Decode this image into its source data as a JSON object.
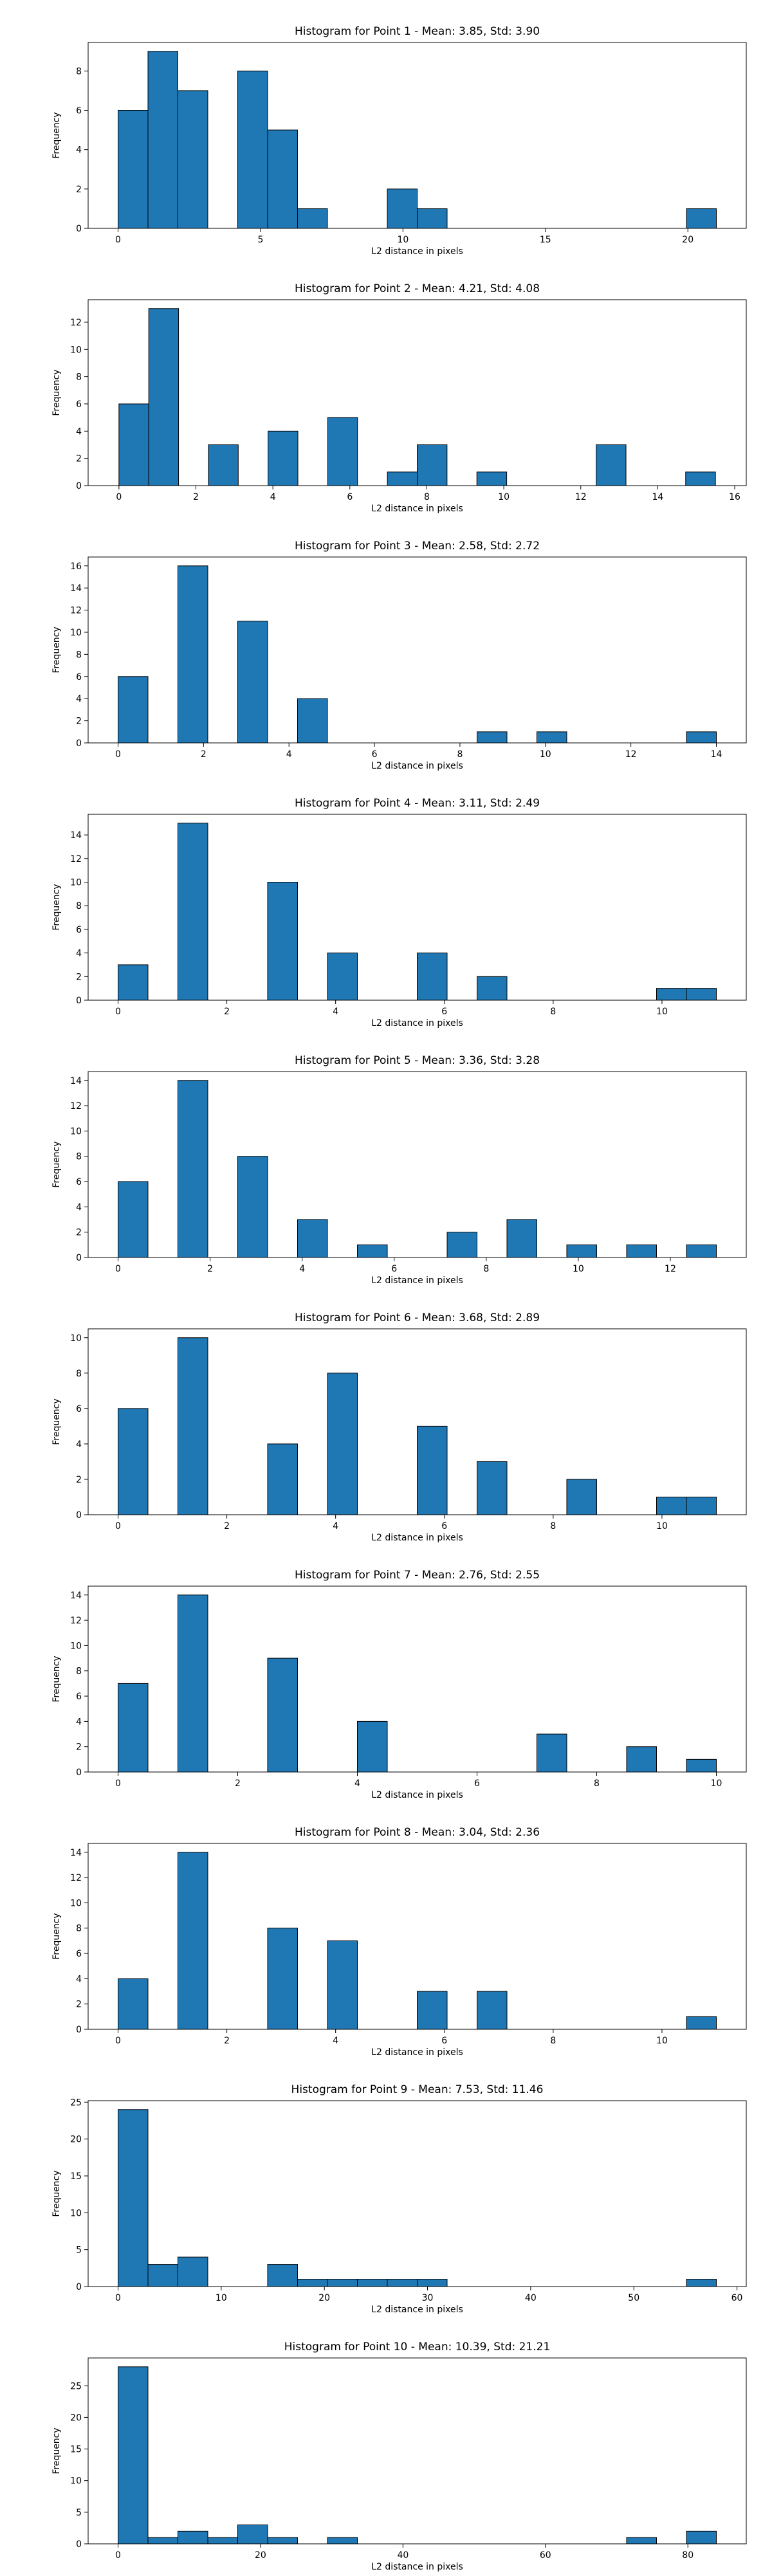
{
  "colors": {
    "bar_fill": "#1f77b4",
    "bar_edge": "#000000",
    "axis": "#000000"
  },
  "chart_data": [
    {
      "type": "bar",
      "title": "Histogram for Point 1 - Mean: 3.85, Std: 3.90",
      "xlabel": "L2 distance in pixels",
      "ylabel": "Frequency",
      "xlim": [
        -1.05,
        22.05
      ],
      "ylim": [
        0,
        9.45
      ],
      "xticks": [
        0,
        5,
        10,
        15,
        20
      ],
      "yticks": [
        0,
        2,
        4,
        6,
        8
      ],
      "bin_edges": [
        0,
        1.05,
        2.1,
        3.15,
        4.2,
        5.25,
        6.3,
        7.35,
        8.4,
        9.45,
        10.5,
        11.55,
        12.6,
        13.65,
        14.7,
        15.75,
        16.8,
        17.85,
        18.9,
        19.95,
        21.0
      ],
      "values": [
        6,
        9,
        7,
        0,
        8,
        5,
        1,
        0,
        0,
        2,
        1,
        0,
        0,
        0,
        0,
        0,
        0,
        0,
        0,
        1
      ]
    },
    {
      "type": "bar",
      "title": "Histogram for Point 2 - Mean: 4.21, Std: 4.08",
      "xlabel": "L2 distance in pixels",
      "ylabel": "Frequency",
      "xlim": [
        -0.8,
        16.3
      ],
      "ylim": [
        0,
        13.65
      ],
      "xticks": [
        0,
        2,
        4,
        6,
        8,
        10,
        12,
        14,
        16
      ],
      "yticks": [
        0,
        2,
        4,
        6,
        8,
        10,
        12
      ],
      "bin_edges": [
        0,
        0.775,
        1.55,
        2.325,
        3.1,
        3.875,
        4.65,
        5.425,
        6.2,
        6.975,
        7.75,
        8.525,
        9.3,
        10.075,
        10.85,
        11.625,
        12.4,
        13.175,
        13.95,
        14.725,
        15.5
      ],
      "values": [
        6,
        13,
        0,
        3,
        0,
        4,
        0,
        5,
        0,
        1,
        3,
        0,
        1,
        0,
        0,
        0,
        3,
        0,
        0,
        1
      ]
    },
    {
      "type": "bar",
      "title": "Histogram for Point 3 - Mean: 2.58, Std: 2.72",
      "xlabel": "L2 distance in pixels",
      "ylabel": "Frequency",
      "xlim": [
        -0.7,
        14.7
      ],
      "ylim": [
        0,
        16.8
      ],
      "xticks": [
        0,
        2,
        4,
        6,
        8,
        10,
        12,
        14
      ],
      "yticks": [
        0,
        2,
        4,
        6,
        8,
        10,
        12,
        14,
        16
      ],
      "bin_edges": [
        0,
        0.7,
        1.4,
        2.1,
        2.8,
        3.5,
        4.2,
        4.9,
        5.6,
        6.3,
        7.0,
        7.7,
        8.4,
        9.1,
        9.8,
        10.5,
        11.2,
        11.9,
        12.6,
        13.3,
        14.0
      ],
      "values": [
        6,
        0,
        16,
        0,
        11,
        0,
        4,
        0,
        0,
        0,
        0,
        0,
        1,
        0,
        1,
        0,
        0,
        0,
        0,
        1
      ]
    },
    {
      "type": "bar",
      "title": "Histogram for Point 4 - Mean: 3.11, Std: 2.49",
      "xlabel": "L2 distance in pixels",
      "ylabel": "Frequency",
      "xlim": [
        -0.55,
        11.55
      ],
      "ylim": [
        0,
        15.75
      ],
      "xticks": [
        0,
        2,
        4,
        6,
        8,
        10
      ],
      "yticks": [
        0,
        2,
        4,
        6,
        8,
        10,
        12,
        14
      ],
      "bin_edges": [
        0,
        0.55,
        1.1,
        1.65,
        2.2,
        2.75,
        3.3,
        3.85,
        4.4,
        4.95,
        5.5,
        6.05,
        6.6,
        7.15,
        7.7,
        8.25,
        8.8,
        9.35,
        9.9,
        10.45,
        11.0
      ],
      "values": [
        3,
        0,
        15,
        0,
        0,
        10,
        0,
        4,
        0,
        0,
        4,
        0,
        2,
        0,
        0,
        0,
        0,
        0,
        1,
        1
      ]
    },
    {
      "type": "bar",
      "title": "Histogram for Point 5 - Mean: 3.36, Std: 3.28",
      "xlabel": "L2 distance in pixels",
      "ylabel": "Frequency",
      "xlim": [
        -0.65,
        13.65
      ],
      "ylim": [
        0,
        14.7
      ],
      "xticks": [
        0,
        2,
        4,
        6,
        8,
        10,
        12
      ],
      "yticks": [
        0,
        2,
        4,
        6,
        8,
        10,
        12,
        14
      ],
      "bin_edges": [
        0,
        0.65,
        1.3,
        1.95,
        2.6,
        3.25,
        3.9,
        4.55,
        5.2,
        5.85,
        6.5,
        7.15,
        7.8,
        8.45,
        9.1,
        9.75,
        10.4,
        11.05,
        11.7,
        12.35,
        13.0
      ],
      "values": [
        6,
        0,
        14,
        0,
        8,
        0,
        3,
        0,
        1,
        0,
        0,
        2,
        0,
        3,
        0,
        1,
        0,
        1,
        0,
        1
      ]
    },
    {
      "type": "bar",
      "title": "Histogram for Point 6 - Mean: 3.68, Std: 2.89",
      "xlabel": "L2 distance in pixels",
      "ylabel": "Frequency",
      "xlim": [
        -0.55,
        11.55
      ],
      "ylim": [
        0,
        10.5
      ],
      "xticks": [
        0,
        2,
        4,
        6,
        8,
        10
      ],
      "yticks": [
        0,
        2,
        4,
        6,
        8,
        10
      ],
      "bin_edges": [
        0,
        0.55,
        1.1,
        1.65,
        2.2,
        2.75,
        3.3,
        3.85,
        4.4,
        4.95,
        5.5,
        6.05,
        6.6,
        7.15,
        7.7,
        8.25,
        8.8,
        9.35,
        9.9,
        10.45,
        11.0
      ],
      "values": [
        6,
        0,
        10,
        0,
        0,
        4,
        0,
        8,
        0,
        0,
        5,
        0,
        3,
        0,
        0,
        2,
        0,
        0,
        1,
        1
      ]
    },
    {
      "type": "bar",
      "title": "Histogram for Point 7 - Mean: 2.76, Std: 2.55",
      "xlabel": "L2 distance in pixels",
      "ylabel": "Frequency",
      "xlim": [
        -0.5,
        10.5
      ],
      "ylim": [
        0,
        14.7
      ],
      "xticks": [
        0,
        2,
        4,
        6,
        8,
        10
      ],
      "yticks": [
        0,
        2,
        4,
        6,
        8,
        10,
        12,
        14
      ],
      "bin_edges": [
        0,
        0.5,
        1.0,
        1.5,
        2.0,
        2.5,
        3.0,
        3.5,
        4.0,
        4.5,
        5.0,
        5.5,
        6.0,
        6.5,
        7.0,
        7.5,
        8.0,
        8.5,
        9.0,
        9.5,
        10.0
      ],
      "values": [
        7,
        0,
        14,
        0,
        0,
        9,
        0,
        0,
        4,
        0,
        0,
        0,
        0,
        0,
        3,
        0,
        0,
        2,
        0,
        1
      ]
    },
    {
      "type": "bar",
      "title": "Histogram for Point 8 - Mean: 3.04, Std: 2.36",
      "xlabel": "L2 distance in pixels",
      "ylabel": "Frequency",
      "xlim": [
        -0.55,
        11.55
      ],
      "ylim": [
        0,
        14.7
      ],
      "xticks": [
        0,
        2,
        4,
        6,
        8,
        10
      ],
      "yticks": [
        0,
        2,
        4,
        6,
        8,
        10,
        12,
        14
      ],
      "bin_edges": [
        0,
        0.55,
        1.1,
        1.65,
        2.2,
        2.75,
        3.3,
        3.85,
        4.4,
        4.95,
        5.5,
        6.05,
        6.6,
        7.15,
        7.7,
        8.25,
        8.8,
        9.35,
        9.9,
        10.45,
        11.0
      ],
      "values": [
        4,
        0,
        14,
        0,
        0,
        8,
        0,
        7,
        0,
        0,
        3,
        0,
        3,
        0,
        0,
        0,
        0,
        0,
        0,
        1
      ]
    },
    {
      "type": "bar",
      "title": "Histogram for Point 9 - Mean: 7.53, Std: 11.46",
      "xlabel": "L2 distance in pixels",
      "ylabel": "Frequency",
      "xlim": [
        -2.9,
        60.9
      ],
      "ylim": [
        0,
        25.2
      ],
      "xticks": [
        0,
        10,
        20,
        30,
        40,
        50,
        60
      ],
      "yticks": [
        0,
        5,
        10,
        15,
        20,
        25
      ],
      "bin_edges": [
        0,
        2.9,
        5.8,
        8.7,
        11.6,
        14.5,
        17.4,
        20.3,
        23.2,
        26.1,
        29.0,
        31.9,
        34.8,
        37.7,
        40.6,
        43.5,
        46.4,
        49.3,
        52.2,
        55.1,
        58.0
      ],
      "values": [
        24,
        3,
        4,
        0,
        0,
        3,
        1,
        1,
        1,
        1,
        1,
        0,
        0,
        0,
        0,
        0,
        0,
        0,
        0,
        1
      ]
    },
    {
      "type": "bar",
      "title": "Histogram for Point 10 - Mean: 10.39, Std: 21.21",
      "xlabel": "L2 distance in pixels",
      "ylabel": "Frequency",
      "xlim": [
        -4.2,
        88.2
      ],
      "ylim": [
        0,
        29.4
      ],
      "xticks": [
        0,
        20,
        40,
        60,
        80
      ],
      "yticks": [
        0,
        5,
        10,
        15,
        20,
        25
      ],
      "bin_edges": [
        0,
        4.2,
        8.4,
        12.6,
        16.8,
        21.0,
        25.2,
        29.4,
        33.6,
        37.8,
        42.0,
        46.2,
        50.4,
        54.6,
        58.8,
        63.0,
        67.2,
        71.4,
        75.6,
        79.8,
        84.0
      ],
      "values": [
        28,
        1,
        2,
        1,
        3,
        1,
        0,
        1,
        0,
        0,
        0,
        0,
        0,
        0,
        0,
        0,
        0,
        1,
        0,
        2
      ]
    }
  ]
}
